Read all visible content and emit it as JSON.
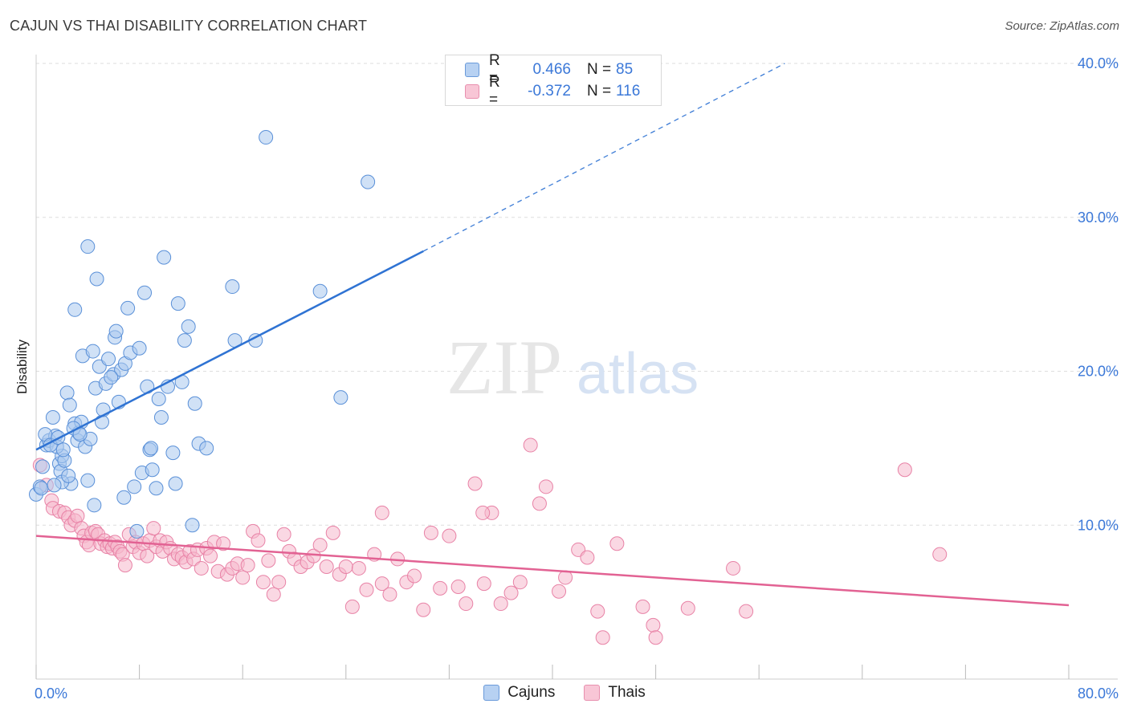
{
  "header": {
    "title": "CAJUN VS THAI DISABILITY CORRELATION CHART",
    "source": "Source: ZipAtlas.com"
  },
  "watermark": {
    "zip": "ZIP",
    "atlas": "atlas"
  },
  "legend": {
    "rows": [
      {
        "r_label": "R =",
        "r_value": "0.466",
        "n_label": "N =",
        "n_value": "85"
      },
      {
        "r_label": "R =",
        "r_value": "-0.372",
        "n_label": "N =",
        "n_value": "116"
      }
    ]
  },
  "bottom_legend": {
    "cajuns": "Cajuns",
    "thais": "Thais"
  },
  "colors": {
    "cajun_fill": "#a9c8ef",
    "cajun_stroke": "#5a90d8",
    "cajun_line": "#2f73d3",
    "thai_fill": "#f6b8cc",
    "thai_stroke": "#e882a6",
    "thai_line": "#e26293",
    "tick": "#3b78d8",
    "grid": "#dddddd"
  },
  "chart_data": {
    "type": "scatter",
    "title": "CAJUN VS THAI DISABILITY CORRELATION CHART",
    "xlabel": "",
    "ylabel": "Disability",
    "xlim": [
      0,
      80
    ],
    "ylim": [
      0,
      40
    ],
    "x_tick_labels": [
      "0.0%",
      "80.0%"
    ],
    "y_ticks": [
      10,
      20,
      30,
      40
    ],
    "y_tick_labels": [
      "10.0%",
      "20.0%",
      "30.0%",
      "40.0%"
    ],
    "grid": true,
    "legend_position": "top-center",
    "series": [
      {
        "name": "Cajuns",
        "r": 0.466,
        "n": 85,
        "trend": {
          "x0": 0,
          "y0": 14.9,
          "x_solid_end": 30,
          "y_solid_end": 27.8,
          "x_dash_end": 58,
          "y_dash_end": 40
        },
        "points": [
          [
            0.0,
            12.0
          ],
          [
            0.3,
            12.5
          ],
          [
            0.5,
            13.8
          ],
          [
            0.8,
            15.2
          ],
          [
            1.0,
            15.5
          ],
          [
            1.3,
            17.0
          ],
          [
            1.5,
            15.8
          ],
          [
            1.8,
            14.0
          ],
          [
            1.9,
            13.5
          ],
          [
            2.0,
            14.5
          ],
          [
            2.2,
            14.2
          ],
          [
            2.4,
            18.6
          ],
          [
            2.6,
            17.8
          ],
          [
            2.7,
            12.7
          ],
          [
            3.0,
            16.6
          ],
          [
            3.2,
            15.5
          ],
          [
            3.3,
            16.0
          ],
          [
            3.5,
            16.7
          ],
          [
            3.6,
            21.0
          ],
          [
            3.8,
            15.1
          ],
          [
            4.0,
            12.9
          ],
          [
            4.2,
            15.6
          ],
          [
            4.4,
            21.3
          ],
          [
            4.5,
            11.3
          ],
          [
            4.6,
            18.9
          ],
          [
            4.7,
            26.0
          ],
          [
            4.9,
            20.3
          ],
          [
            5.1,
            16.7
          ],
          [
            5.2,
            17.5
          ],
          [
            5.4,
            19.2
          ],
          [
            5.6,
            20.8
          ],
          [
            6.0,
            19.8
          ],
          [
            6.1,
            22.2
          ],
          [
            6.2,
            22.6
          ],
          [
            6.4,
            18.0
          ],
          [
            6.6,
            20.1
          ],
          [
            6.8,
            11.8
          ],
          [
            6.9,
            20.5
          ],
          [
            7.1,
            24.1
          ],
          [
            7.3,
            21.2
          ],
          [
            7.6,
            12.5
          ],
          [
            7.8,
            9.6
          ],
          [
            8.0,
            21.5
          ],
          [
            8.2,
            13.4
          ],
          [
            8.4,
            25.1
          ],
          [
            8.6,
            19.0
          ],
          [
            8.8,
            14.9
          ],
          [
            9.0,
            13.6
          ],
          [
            9.3,
            12.4
          ],
          [
            9.5,
            18.2
          ],
          [
            9.7,
            17.0
          ],
          [
            9.9,
            27.4
          ],
          [
            10.2,
            19.0
          ],
          [
            10.6,
            14.7
          ],
          [
            10.8,
            12.7
          ],
          [
            11.0,
            24.4
          ],
          [
            11.3,
            19.3
          ],
          [
            11.5,
            22.0
          ],
          [
            11.8,
            22.9
          ],
          [
            12.1,
            10.0
          ],
          [
            12.3,
            17.9
          ],
          [
            12.6,
            15.3
          ],
          [
            13.2,
            15.0
          ],
          [
            4.0,
            28.1
          ],
          [
            2.0,
            12.8
          ],
          [
            1.6,
            15.1
          ],
          [
            2.5,
            13.2
          ],
          [
            2.9,
            16.3
          ],
          [
            3.4,
            15.9
          ],
          [
            0.7,
            15.9
          ],
          [
            1.1,
            15.2
          ],
          [
            1.7,
            15.7
          ],
          [
            5.8,
            19.6
          ],
          [
            8.9,
            15.0
          ],
          [
            3.0,
            24.0
          ],
          [
            2.1,
            14.9
          ],
          [
            0.4,
            12.4
          ],
          [
            1.4,
            12.6
          ],
          [
            15.2,
            25.5
          ],
          [
            15.4,
            22.0
          ],
          [
            17.0,
            22.0
          ],
          [
            17.8,
            35.2
          ],
          [
            22.0,
            25.2
          ],
          [
            23.6,
            18.3
          ],
          [
            25.7,
            32.3
          ]
        ]
      },
      {
        "name": "Thais",
        "r": -0.372,
        "n": 116,
        "trend": {
          "x0": 0,
          "y0": 9.3,
          "x1": 80,
          "y1": 4.8
        },
        "points": [
          [
            0.3,
            13.9
          ],
          [
            0.8,
            12.6
          ],
          [
            1.2,
            11.6
          ],
          [
            1.3,
            11.1
          ],
          [
            1.8,
            10.9
          ],
          [
            2.2,
            10.8
          ],
          [
            2.5,
            10.5
          ],
          [
            2.7,
            10.0
          ],
          [
            3.0,
            10.3
          ],
          [
            3.2,
            10.6
          ],
          [
            3.5,
            9.8
          ],
          [
            3.7,
            9.3
          ],
          [
            3.9,
            8.9
          ],
          [
            4.1,
            8.7
          ],
          [
            4.3,
            9.5
          ],
          [
            4.6,
            9.6
          ],
          [
            4.8,
            9.4
          ],
          [
            5.0,
            8.8
          ],
          [
            5.3,
            9.0
          ],
          [
            5.5,
            8.6
          ],
          [
            5.7,
            8.8
          ],
          [
            5.9,
            8.5
          ],
          [
            6.1,
            8.9
          ],
          [
            6.3,
            8.6
          ],
          [
            6.5,
            8.3
          ],
          [
            6.7,
            8.1
          ],
          [
            6.9,
            7.4
          ],
          [
            7.2,
            9.4
          ],
          [
            7.5,
            8.6
          ],
          [
            7.7,
            8.9
          ],
          [
            8.0,
            8.2
          ],
          [
            8.3,
            8.8
          ],
          [
            8.6,
            8.0
          ],
          [
            8.8,
            9.0
          ],
          [
            9.1,
            9.8
          ],
          [
            9.3,
            8.6
          ],
          [
            9.6,
            9.0
          ],
          [
            9.8,
            8.3
          ],
          [
            10.1,
            8.9
          ],
          [
            10.4,
            8.5
          ],
          [
            10.7,
            7.8
          ],
          [
            11.0,
            8.1
          ],
          [
            11.3,
            7.9
          ],
          [
            11.6,
            7.6
          ],
          [
            11.9,
            8.3
          ],
          [
            12.2,
            7.8
          ],
          [
            12.5,
            8.4
          ],
          [
            12.8,
            7.2
          ],
          [
            13.2,
            8.5
          ],
          [
            13.5,
            8.0
          ],
          [
            13.8,
            8.9
          ],
          [
            14.1,
            7.0
          ],
          [
            14.5,
            8.8
          ],
          [
            14.8,
            6.8
          ],
          [
            15.2,
            7.2
          ],
          [
            15.6,
            7.5
          ],
          [
            16.0,
            6.6
          ],
          [
            16.4,
            7.4
          ],
          [
            16.8,
            9.6
          ],
          [
            17.2,
            9.0
          ],
          [
            17.6,
            6.3
          ],
          [
            18.0,
            7.7
          ],
          [
            18.4,
            5.5
          ],
          [
            18.8,
            6.3
          ],
          [
            19.2,
            9.4
          ],
          [
            19.6,
            8.3
          ],
          [
            20.0,
            7.8
          ],
          [
            20.5,
            7.3
          ],
          [
            21.0,
            7.6
          ],
          [
            21.5,
            8.0
          ],
          [
            22.0,
            8.7
          ],
          [
            22.5,
            7.3
          ],
          [
            23.0,
            9.5
          ],
          [
            23.5,
            6.8
          ],
          [
            24.0,
            7.3
          ],
          [
            24.5,
            4.7
          ],
          [
            25.0,
            7.2
          ],
          [
            25.6,
            5.8
          ],
          [
            26.2,
            8.1
          ],
          [
            26.8,
            6.2
          ],
          [
            27.4,
            5.5
          ],
          [
            28.0,
            7.8
          ],
          [
            28.7,
            6.3
          ],
          [
            29.3,
            6.7
          ],
          [
            30.0,
            4.5
          ],
          [
            30.6,
            9.5
          ],
          [
            31.3,
            5.9
          ],
          [
            32.0,
            9.3
          ],
          [
            32.7,
            6.0
          ],
          [
            33.3,
            4.9
          ],
          [
            34.0,
            12.7
          ],
          [
            34.7,
            6.2
          ],
          [
            35.3,
            10.8
          ],
          [
            36.0,
            4.9
          ],
          [
            36.8,
            5.6
          ],
          [
            37.5,
            6.3
          ],
          [
            38.3,
            15.2
          ],
          [
            39.0,
            11.4
          ],
          [
            39.5,
            12.5
          ],
          [
            40.5,
            5.7
          ],
          [
            42.0,
            8.4
          ],
          [
            43.5,
            4.4
          ],
          [
            45.0,
            8.8
          ],
          [
            47.0,
            4.7
          ],
          [
            47.8,
            3.5
          ],
          [
            48.0,
            2.7
          ],
          [
            50.5,
            4.6
          ],
          [
            54.0,
            7.2
          ],
          [
            55.0,
            4.4
          ],
          [
            67.3,
            13.6
          ],
          [
            70.0,
            8.1
          ],
          [
            34.6,
            10.8
          ],
          [
            26.8,
            10.8
          ],
          [
            42.7,
            7.9
          ],
          [
            41.0,
            6.6
          ],
          [
            43.9,
            2.7
          ]
        ]
      }
    ]
  }
}
